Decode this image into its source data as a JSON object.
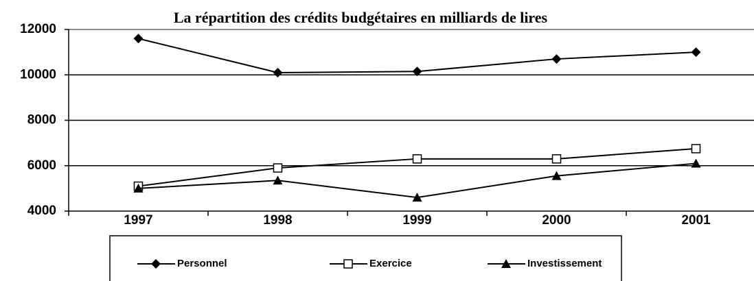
{
  "chart_data": {
    "type": "line",
    "title": "La répartition des crédits budgétaires en milliards de lires",
    "categories": [
      "1997",
      "1998",
      "1999",
      "2000",
      "2001"
    ],
    "series": [
      {
        "name": "Personnel",
        "color": "#000000",
        "marker": "diamond",
        "values": [
          11600,
          10100,
          10150,
          10700,
          11000
        ]
      },
      {
        "name": "Exercice",
        "color": "#000000",
        "marker": "square-open",
        "values": [
          5100,
          5900,
          6300,
          6300,
          6750
        ]
      },
      {
        "name": "Investissement",
        "color": "#000000",
        "marker": "triangle",
        "values": [
          5000,
          5350,
          4600,
          5550,
          6100
        ]
      }
    ],
    "ylim": [
      4000,
      12000
    ],
    "yticks": [
      4000,
      6000,
      8000,
      10000,
      12000
    ],
    "grid": true,
    "legend": "bottom"
  }
}
